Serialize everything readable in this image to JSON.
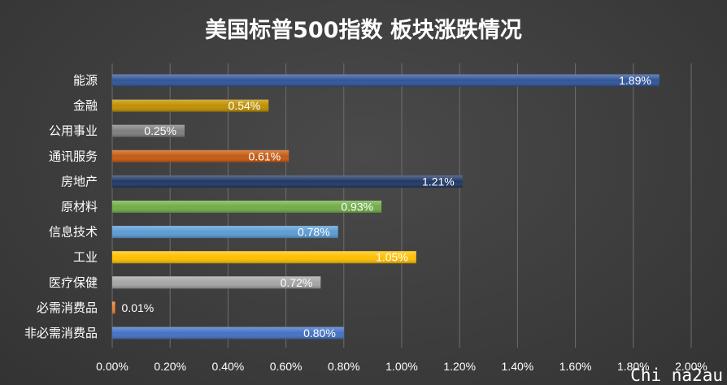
{
  "chart_data": {
    "type": "bar",
    "orientation": "horizontal",
    "title": "美国标普500指数 板块涨跌情况",
    "categories": [
      "能源",
      "金融",
      "公用事业",
      "通讯服务",
      "房地产",
      "原材料",
      "信息技术",
      "工业",
      "医疗保健",
      "必需消费品",
      "非必需消费品"
    ],
    "values": [
      1.89,
      0.54,
      0.25,
      0.61,
      1.21,
      0.93,
      0.78,
      1.05,
      0.72,
      0.01,
      0.8
    ],
    "value_labels": [
      "1.89%",
      "0.54%",
      "0.25%",
      "0.61%",
      "1.21%",
      "0.93%",
      "0.78%",
      "1.05%",
      "0.72%",
      "0.01%",
      "0.80%"
    ],
    "colors": [
      "#2f5597",
      "#bf9000",
      "#7f7f7f",
      "#c55a11",
      "#203864",
      "#70ad47",
      "#5b9bd5",
      "#ffc000",
      "#a5a5a5",
      "#ed7d31",
      "#4472c4"
    ],
    "xlim": [
      0,
      2.0
    ],
    "x_ticks": [
      "0.00%",
      "0.20%",
      "0.40%",
      "0.60%",
      "0.80%",
      "1.00%",
      "1.20%",
      "1.40%",
      "1.60%",
      "1.80%",
      "2.00%"
    ],
    "xlabel": "",
    "ylabel": "",
    "grid": "vertical",
    "legend": "none"
  },
  "watermark": "Chi na2au"
}
